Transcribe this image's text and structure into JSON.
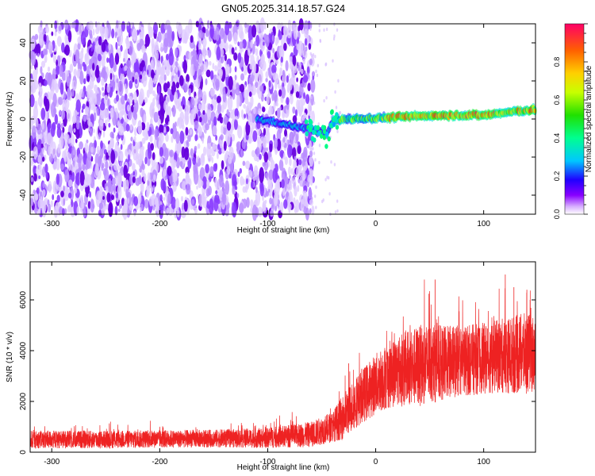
{
  "title": "GN05.2025.314.18.57.G24",
  "colors": {
    "snr_line": "#ee2222",
    "spectrogram_low": "#a070ff",
    "spectrogram_high": "#6a00e0",
    "axis": "#000000"
  },
  "chart_data": [
    {
      "type": "heatmap",
      "name": "spectrogram",
      "xlabel": "Height of straight line (km)",
      "ylabel": "Frequency (Hz)",
      "xlim": [
        -320,
        148
      ],
      "ylim": [
        -50,
        50
      ],
      "xticks": [
        -300,
        -200,
        -100,
        0,
        100
      ],
      "yticks": [
        -40,
        -20,
        0,
        20,
        40
      ],
      "xtick_labels": [
        "-300",
        "-200",
        "-100",
        "0",
        "100"
      ],
      "ytick_labels": [
        "-40",
        "-20",
        "0",
        "20",
        "40"
      ],
      "noise_region_x": [
        -320,
        -62
      ],
      "signal_trace": {
        "x": [
          -110,
          -90,
          -75,
          -60,
          -52,
          -45,
          -40,
          -30,
          -20,
          0,
          20,
          40,
          60,
          80,
          100,
          115,
          130,
          148
        ],
        "y": [
          0,
          -2,
          -4,
          -5,
          -7,
          -8,
          -1,
          0,
          0,
          0.5,
          1,
          1.5,
          2,
          2,
          2,
          3,
          4,
          5
        ]
      },
      "colorbar": {
        "label": "Normalized spectral amplitude",
        "range": [
          0,
          1
        ],
        "ticks": [
          0.0,
          0.2,
          0.4,
          0.6,
          0.8
        ],
        "tick_labels": [
          "0.0",
          "0.2",
          "0.4",
          "0.6",
          "0.8"
        ]
      }
    },
    {
      "type": "line",
      "name": "snr",
      "xlabel": "Height of straight line (km)",
      "ylabel": "SNR (10 * v/v)",
      "xlim": [
        -320,
        148
      ],
      "ylim": [
        0,
        7500
      ],
      "xticks": [
        -300,
        -200,
        -100,
        0,
        100
      ],
      "yticks": [
        0,
        2000,
        4000,
        6000
      ],
      "xtick_labels": [
        "-300",
        "-200",
        "-100",
        "0",
        "100"
      ],
      "ytick_labels": [
        "0",
        "2000",
        "4000",
        "6000"
      ],
      "envelope": {
        "x": [
          -320,
          -250,
          -200,
          -150,
          -100,
          -60,
          -40,
          -30,
          -20,
          -10,
          0,
          10,
          20,
          30,
          40,
          50,
          60,
          80,
          100,
          120,
          140,
          148
        ],
        "mean": [
          500,
          500,
          520,
          540,
          560,
          700,
          1000,
          1400,
          1900,
          2300,
          2700,
          3000,
          3200,
          3300,
          3400,
          3500,
          3500,
          3600,
          3700,
          3800,
          3900,
          3900
        ],
        "spread": [
          350,
          350,
          350,
          350,
          400,
          500,
          600,
          900,
          1000,
          1100,
          1200,
          1300,
          1400,
          1500,
          1600,
          1600,
          1500,
          1400,
          1400,
          1500,
          1600,
          1500
        ]
      },
      "peaks": [
        {
          "x": -25,
          "y": 3500
        },
        {
          "x": 55,
          "y": 6800
        },
        {
          "x": 120,
          "y": 7000
        },
        {
          "x": 128,
          "y": 6500
        },
        {
          "x": 140,
          "y": 6400
        },
        {
          "x": 143,
          "y": 6000
        }
      ]
    }
  ]
}
